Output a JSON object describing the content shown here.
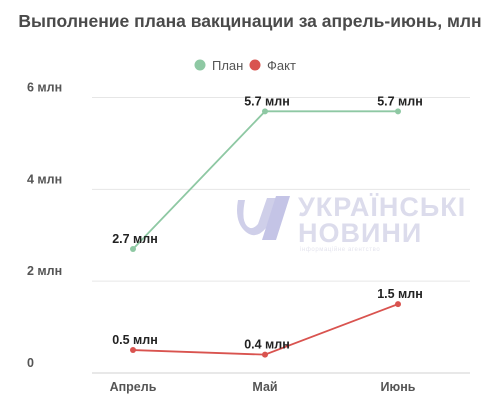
{
  "chart_data": {
    "type": "line",
    "title": "Выполнение плана вакцинации за апрель-июнь, млн",
    "categories": [
      "Апрель",
      "Май",
      "Июнь"
    ],
    "ylim": [
      0,
      6.6
    ],
    "yticks": [
      {
        "value": 0,
        "label": "0"
      },
      {
        "value": 2,
        "label": "2 млн"
      },
      {
        "value": 4,
        "label": "4 млн"
      },
      {
        "value": 6,
        "label": "6 млн"
      }
    ],
    "grid": true,
    "legend_position": "top-center",
    "series": [
      {
        "name": "План",
        "color": "#8ec8a3",
        "values": [
          2.7,
          5.7,
          5.7
        ],
        "labels": [
          "2.7 млн",
          "5.7 млн",
          "5.7 млн"
        ]
      },
      {
        "name": "Факт",
        "color": "#d9534f",
        "values": [
          0.5,
          0.4,
          1.5
        ],
        "labels": [
          "0.5 млн",
          "0.4 млн",
          "1.5 млн"
        ]
      }
    ]
  },
  "watermark": {
    "line1": "УКРАЇНСЬКІ",
    "line2": "НОВИНИ",
    "tagline": "інформаційне агентство",
    "logo_color": "#c8c8e8"
  }
}
